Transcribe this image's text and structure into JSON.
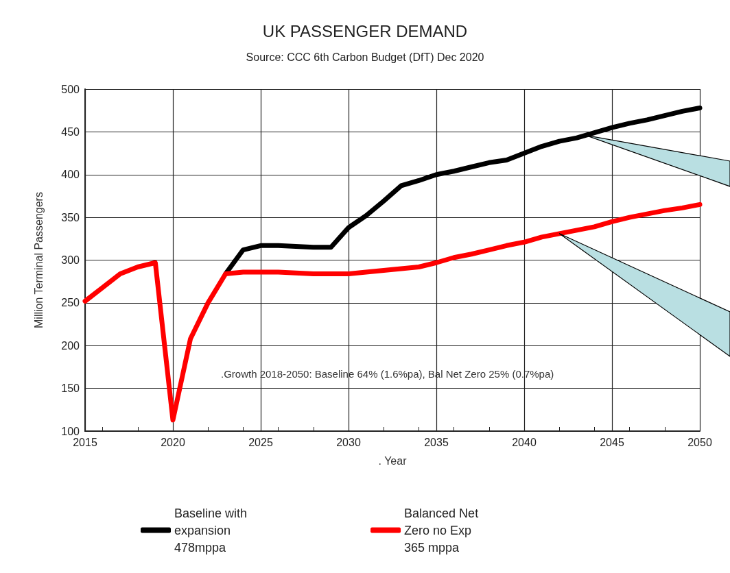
{
  "chart_data": {
    "type": "line",
    "title": "UK PASSENGER DEMAND",
    "subtitle": "Source: CCC 6th Carbon Budget (DfT) Dec 2020",
    "xlabel": ". Year",
    "ylabel": "Million Terminal Passengers",
    "x": [
      2015,
      2016,
      2017,
      2018,
      2019,
      2020,
      2021,
      2022,
      2023,
      2024,
      2025,
      2026,
      2027,
      2028,
      2029,
      2030,
      2031,
      2032,
      2033,
      2034,
      2035,
      2036,
      2037,
      2038,
      2039,
      2040,
      2041,
      2042,
      2043,
      2044,
      2045,
      2046,
      2047,
      2048,
      2049,
      2050
    ],
    "series": [
      {
        "name": "Baseline with\nexpansion\n478mppa",
        "color": "#000000",
        "values": [
          null,
          null,
          null,
          null,
          null,
          null,
          null,
          null,
          284,
          312,
          317,
          317,
          316,
          315,
          315,
          338,
          352,
          369,
          387,
          393,
          400,
          404,
          409,
          414,
          417,
          425,
          433,
          439,
          443,
          449,
          455,
          460,
          464,
          469,
          474,
          478
        ]
      },
      {
        "name": "Balanced Net\nZero no Exp\n365 mppa",
        "color": "#ff0000",
        "values": [
          252,
          268,
          284,
          292,
          297,
          113,
          208,
          250,
          284,
          286,
          286,
          286,
          285,
          284,
          284,
          284,
          286,
          288,
          290,
          292,
          297,
          303,
          307,
          312,
          317,
          321,
          327,
          331,
          335,
          339,
          345,
          350,
          354,
          358,
          361,
          365
        ]
      }
    ],
    "annotations": [
      ".Growth 2018-2050: Baseline 64% (1.6%pa), Bal Net Zero 25% (0.7%pa)"
    ],
    "xlim": [
      2015,
      2050
    ],
    "xticks": [
      2015,
      2020,
      2025,
      2030,
      2035,
      2040,
      2045,
      2050
    ],
    "ylim": [
      100,
      500
    ],
    "yticks": [
      100,
      150,
      200,
      250,
      300,
      350,
      400,
      450,
      500
    ],
    "grid": true,
    "legend": "bottom",
    "marker": "none",
    "line_style": "solid"
  }
}
